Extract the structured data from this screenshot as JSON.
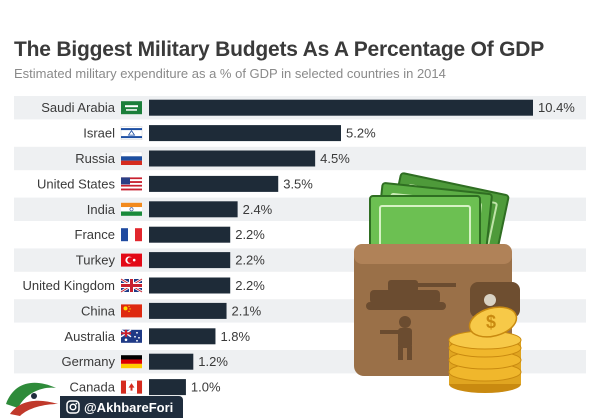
{
  "chart_data": {
    "type": "bar",
    "orientation": "horizontal",
    "title": "The Biggest Military Budgets As A Percentage Of GDP",
    "subtitle": "Estimated military expenditure as a % of GDP in selected countries in 2014",
    "xlabel": "",
    "ylabel": "",
    "categories": [
      "Saudi Arabia",
      "Israel",
      "Russia",
      "United States",
      "India",
      "France",
      "Turkey",
      "United Kingdom",
      "China",
      "Australia",
      "Germany",
      "Canada"
    ],
    "values": [
      10.4,
      5.2,
      4.5,
      3.5,
      2.4,
      2.2,
      2.2,
      2.2,
      2.1,
      1.8,
      1.2,
      1.0
    ],
    "value_labels": [
      "10.4%",
      "5.2%",
      "4.5%",
      "3.5%",
      "2.4%",
      "2.2%",
      "2.2%",
      "2.2%",
      "2.1%",
      "1.8%",
      "1.2%",
      "1.0%"
    ],
    "flag_icons": [
      "saudi-arabia-flag-icon",
      "israel-flag-icon",
      "russia-flag-icon",
      "united-states-flag-icon",
      "india-flag-icon",
      "france-flag-icon",
      "turkey-flag-icon",
      "united-kingdom-flag-icon",
      "china-flag-icon",
      "australia-flag-icon",
      "germany-flag-icon",
      "canada-flag-icon"
    ],
    "xlim": [
      0,
      10.4
    ],
    "grid": false,
    "legend": "none",
    "bar_color": "#1e2b38",
    "row_stripe_color": "#eef0f2"
  },
  "illustration": {
    "icon": "wallet-with-money-and-coins-icon"
  },
  "footer": {
    "handle": "@AkhbareFori",
    "logo_icon": "news-agency-logo-icon"
  }
}
